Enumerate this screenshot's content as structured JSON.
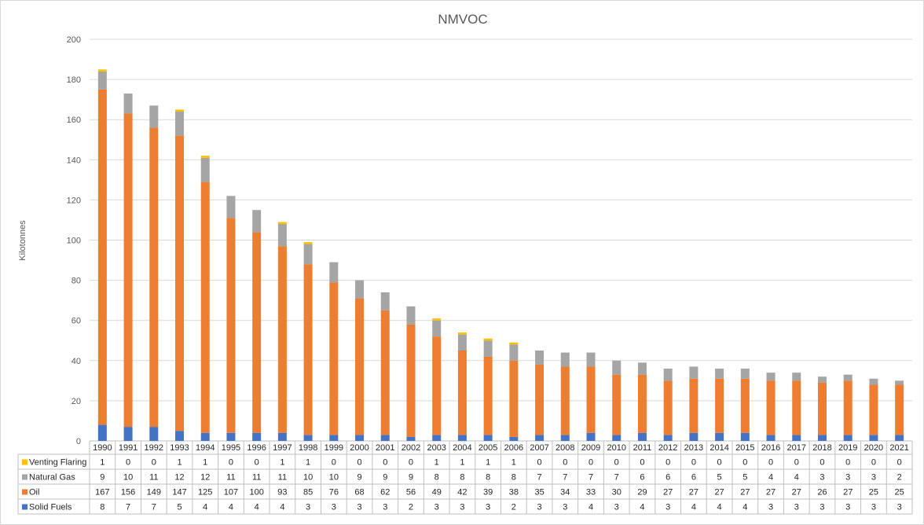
{
  "chart_data": {
    "type": "bar",
    "stacked": true,
    "title": "NMVOC",
    "xlabel": "",
    "ylabel": "Kilotonnes",
    "ylim": [
      0,
      200
    ],
    "yticks": [
      0,
      20,
      40,
      60,
      80,
      100,
      120,
      140,
      160,
      180,
      200
    ],
    "grid": true,
    "legend": "data table (left of rows)",
    "categories": [
      "1990",
      "1991",
      "1992",
      "1993",
      "1994",
      "1995",
      "1996",
      "1997",
      "1998",
      "1999",
      "2000",
      "2001",
      "2002",
      "2003",
      "2004",
      "2005",
      "2006",
      "2007",
      "2008",
      "2009",
      "2010",
      "2011",
      "2012",
      "2013",
      "2014",
      "2015",
      "2016",
      "2017",
      "2018",
      "2019",
      "2020",
      "2021"
    ],
    "series": [
      {
        "name": "Solid Fuels",
        "color": "#4472c4",
        "values": [
          8,
          7,
          7,
          5,
          4,
          4,
          4,
          4,
          3,
          3,
          3,
          3,
          2,
          3,
          3,
          3,
          2,
          3,
          3,
          4,
          3,
          4,
          3,
          4,
          4,
          4,
          3,
          3,
          3,
          3,
          3,
          3
        ]
      },
      {
        "name": "Oil",
        "color": "#ed7d31",
        "values": [
          167,
          156,
          149,
          147,
          125,
          107,
          100,
          93,
          85,
          76,
          68,
          62,
          56,
          49,
          42,
          39,
          38,
          35,
          34,
          33,
          30,
          29,
          27,
          27,
          27,
          27,
          27,
          27,
          26,
          27,
          25,
          25
        ]
      },
      {
        "name": "Natural Gas",
        "color": "#a5a5a5",
        "values": [
          9,
          10,
          11,
          12,
          12,
          11,
          11,
          11,
          10,
          10,
          9,
          9,
          9,
          8,
          8,
          8,
          8,
          7,
          7,
          7,
          7,
          6,
          6,
          6,
          5,
          5,
          4,
          4,
          3,
          3,
          3,
          2
        ]
      },
      {
        "name": "Venting Flaring",
        "color": "#ffc000",
        "values": [
          1,
          0,
          0,
          1,
          1,
          0,
          0,
          1,
          1,
          0,
          0,
          0,
          0,
          1,
          1,
          1,
          1,
          0,
          0,
          0,
          0,
          0,
          0,
          0,
          0,
          0,
          0,
          0,
          0,
          0,
          0,
          0
        ]
      }
    ]
  }
}
